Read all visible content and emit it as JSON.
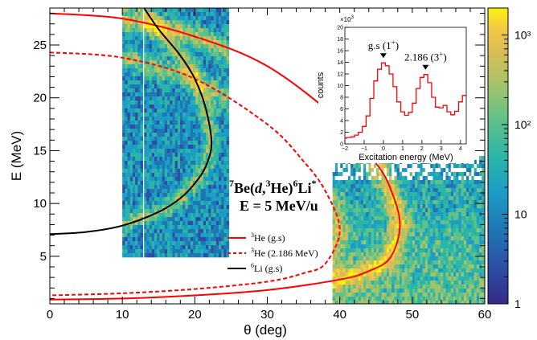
{
  "colors": {
    "sim_gs": "#ff0000",
    "sim_ex": "#ff0000",
    "li6": "#000000",
    "palette": [
      "#352a87",
      "#2d4ea6",
      "#1f77b4",
      "#1b9ec6",
      "#2bb5a8",
      "#5fc08a",
      "#a3c36a",
      "#d8bc55",
      "#f4c844",
      "#f9f20e"
    ]
  },
  "chart_data": [
    {
      "type": "heatmap",
      "xlabel": "θ (deg)",
      "ylabel": "E (MeV)",
      "xlim": [
        0,
        60
      ],
      "ylim": [
        0.5,
        28.5
      ],
      "xticks": [
        "0",
        "10",
        "20",
        "30",
        "40",
        "50",
        "60"
      ],
      "yticks": [
        "5",
        "10",
        "15",
        "20",
        "25"
      ],
      "colorbar": {
        "scale": "log",
        "range": [
          1,
          2000
        ],
        "ticks": [
          "1",
          "10",
          "10²",
          "10³"
        ]
      },
      "annotation": {
        "line1_a": "7",
        "line1_b": "Be(",
        "line1_c": "d",
        "line1_d": ",",
        "line1_e": "3",
        "line1_f": "He)",
        "line1_g": "6",
        "line1_h": "Li",
        "line1_i": "*",
        "line2": "E = 5 MeV/u"
      },
      "legend": [
        {
          "sup": "3",
          "label": "He (g.s)",
          "style": "solid",
          "color": "#ff0000"
        },
        {
          "sup": "3",
          "label": "He (2.186 MeV)",
          "style": "dashed",
          "color": "#ff0000"
        },
        {
          "sup": "6",
          "label": "Li (g.s)",
          "style": "solid",
          "color": "#000000"
        }
      ],
      "curves": {
        "he3_gs": {
          "x": [
            0,
            10,
            20,
            30,
            40,
            45,
            47,
            48.3,
            47,
            44,
            40,
            30,
            20,
            10,
            0
          ],
          "y": [
            28.0,
            27.5,
            25.8,
            23.0,
            17.8,
            13.8,
            11.4,
            8.0,
            4.9,
            3.6,
            2.8,
            1.8,
            1.3,
            1.0,
            0.9
          ]
        },
        "he3_ex": {
          "x": [
            0,
            10,
            20,
            30,
            35,
            38,
            40,
            38,
            35,
            30,
            20,
            10,
            0
          ],
          "y": [
            24.3,
            23.8,
            21.8,
            17.5,
            14.0,
            11.2,
            7.5,
            4.3,
            3.4,
            2.6,
            1.9,
            1.5,
            1.3
          ]
        },
        "li6_gs": {
          "x": [
            0,
            5,
            10,
            15,
            18,
            20,
            21.5,
            22.3,
            21.5,
            20,
            18,
            15,
            13
          ],
          "y": [
            7.1,
            7.3,
            7.9,
            9.2,
            10.5,
            11.9,
            13.5,
            15.7,
            19.0,
            21.8,
            24.0,
            26.5,
            28.5
          ]
        }
      },
      "regions": [
        {
          "name": "detector-window-1",
          "x": [
            10,
            12.5
          ],
          "y": [
            5,
            28.5
          ]
        },
        {
          "name": "detector-window-2",
          "x": [
            13,
            24.5
          ],
          "y": [
            5,
            28.5
          ]
        },
        {
          "name": "detector-window-3",
          "x": [
            39,
            60
          ],
          "y": [
            0.5,
            14.5
          ]
        }
      ]
    },
    {
      "type": "line",
      "xlabel": "Excitation energy (MeV)",
      "ylabel": "counts",
      "xlim": [
        -2,
        4.3
      ],
      "ylim": [
        0,
        20
      ],
      "multiplier": "×10",
      "multiplier_exp": "3",
      "xticks": [
        "−2",
        "−1",
        "0",
        "1",
        "2",
        "3",
        "4"
      ],
      "yticks": [
        "0",
        "2",
        "4",
        "6",
        "8",
        "10",
        "12",
        "14",
        "16",
        "18",
        "20"
      ],
      "peaks": [
        {
          "x": 0,
          "y": 13.9,
          "label_a": "g.s (1",
          "label_sup": "+",
          "label_b": ")"
        },
        {
          "x": 2.186,
          "y": 11.9,
          "label_a": "2.186 (3",
          "label_sup": "+",
          "label_b": ")"
        }
      ],
      "x": [
        -2.0,
        -1.8,
        -1.6,
        -1.4,
        -1.2,
        -1.0,
        -0.8,
        -0.6,
        -0.4,
        -0.2,
        0.0,
        0.2,
        0.4,
        0.6,
        0.8,
        1.0,
        1.2,
        1.4,
        1.6,
        1.8,
        2.0,
        2.2,
        2.4,
        2.6,
        2.8,
        3.0,
        3.2,
        3.4,
        3.6,
        3.8,
        4.0,
        4.2
      ],
      "values": [
        1.0,
        1.1,
        1.2,
        1.5,
        2.0,
        3.0,
        4.8,
        7.8,
        10.8,
        12.8,
        13.9,
        13.4,
        12.0,
        9.8,
        7.2,
        5.5,
        4.9,
        5.4,
        7.0,
        9.5,
        11.4,
        11.9,
        10.5,
        8.0,
        6.3,
        6.2,
        6.6,
        5.5,
        5.0,
        5.6,
        7.2,
        8.3
      ]
    }
  ]
}
